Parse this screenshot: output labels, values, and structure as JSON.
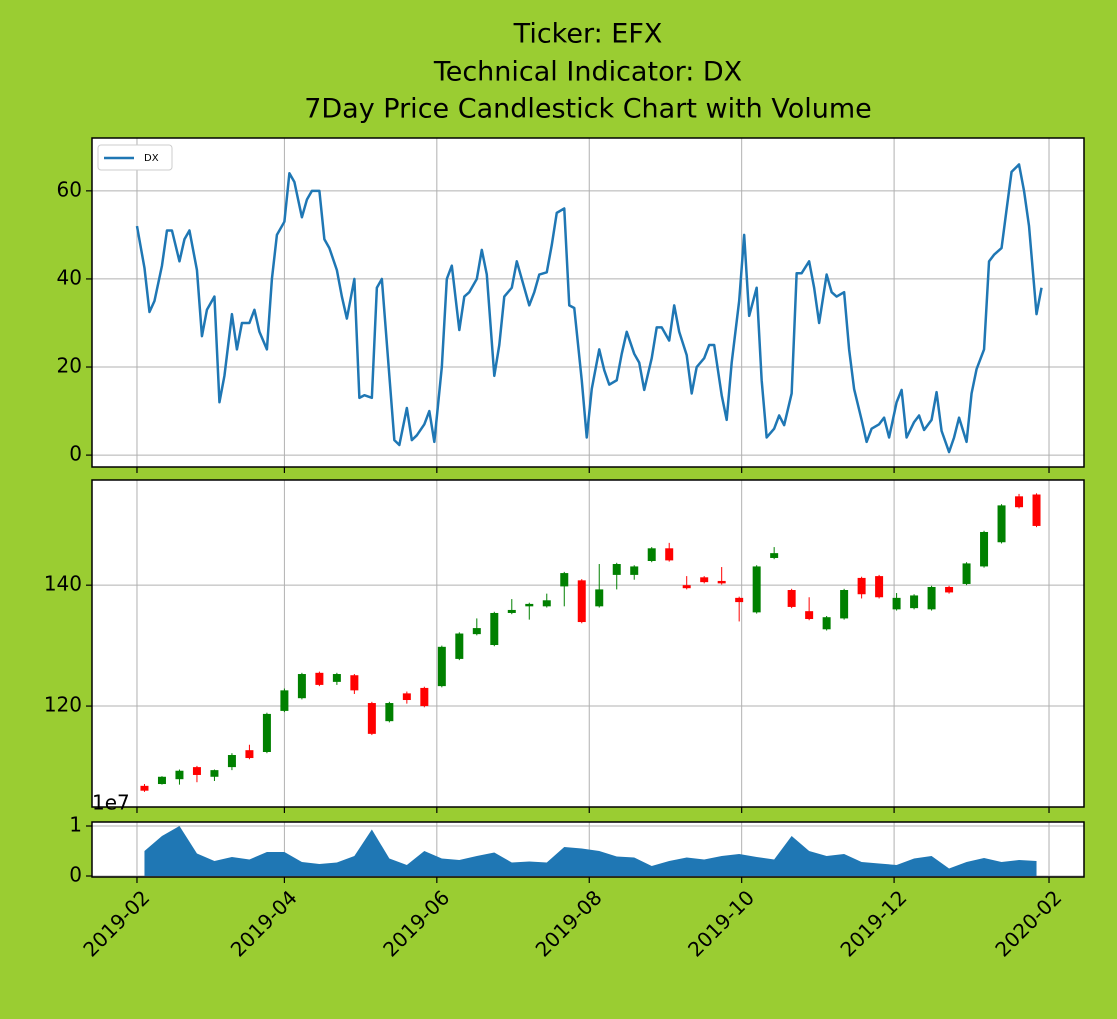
{
  "chart_data": [
    {
      "type": "line",
      "title": [
        "Ticker: EFX",
        "Technical Indicator: DX",
        "7Day Price Candlestick Chart with Volume"
      ],
      "legend": "upper left",
      "grid": true,
      "ylim": [
        -2.7,
        72
      ],
      "yticks": [
        0,
        20,
        40,
        60
      ],
      "x": [
        "2019-02-01",
        "2019-02-04",
        "2019-02-06",
        "2019-02-08",
        "2019-02-11",
        "2019-02-13",
        "2019-02-15",
        "2019-02-18",
        "2019-02-20",
        "2019-02-22",
        "2019-02-25",
        "2019-02-27",
        "2019-03-01",
        "2019-03-04",
        "2019-03-06",
        "2019-03-08",
        "2019-03-11",
        "2019-03-13",
        "2019-03-15",
        "2019-03-18",
        "2019-03-20",
        "2019-03-22",
        "2019-03-25",
        "2019-03-27",
        "2019-03-29",
        "2019-04-01",
        "2019-04-03",
        "2019-04-05",
        "2019-04-08",
        "2019-04-10",
        "2019-04-12",
        "2019-04-15",
        "2019-04-17",
        "2019-04-19",
        "2019-04-22",
        "2019-04-24",
        "2019-04-26",
        "2019-04-29",
        "2019-05-01",
        "2019-05-03",
        "2019-05-06",
        "2019-05-08",
        "2019-05-10",
        "2019-05-13",
        "2019-05-15",
        "2019-05-17",
        "2019-05-20",
        "2019-05-22",
        "2019-05-24",
        "2019-05-27",
        "2019-05-29",
        "2019-05-31",
        "2019-06-03",
        "2019-06-05",
        "2019-06-07",
        "2019-06-10",
        "2019-06-12",
        "2019-06-14",
        "2019-06-17",
        "2019-06-19",
        "2019-06-21",
        "2019-06-24",
        "2019-06-26",
        "2019-06-28",
        "2019-07-01",
        "2019-07-03",
        "2019-07-05",
        "2019-07-08",
        "2019-07-10",
        "2019-07-12",
        "2019-07-15",
        "2019-07-17",
        "2019-07-19",
        "2019-07-22",
        "2019-07-24",
        "2019-07-26",
        "2019-07-29",
        "2019-07-31",
        "2019-08-02",
        "2019-08-05",
        "2019-08-07",
        "2019-08-09",
        "2019-08-12",
        "2019-08-14",
        "2019-08-16",
        "2019-08-19",
        "2019-08-21",
        "2019-08-23",
        "2019-08-26",
        "2019-08-28",
        "2019-08-30",
        "2019-09-02",
        "2019-09-04",
        "2019-09-06",
        "2019-09-09",
        "2019-09-11",
        "2019-09-13",
        "2019-09-16",
        "2019-09-18",
        "2019-09-20",
        "2019-09-23",
        "2019-09-25",
        "2019-09-27",
        "2019-09-30",
        "2019-10-02",
        "2019-10-04",
        "2019-10-07",
        "2019-10-09",
        "2019-10-11",
        "2019-10-14",
        "2019-10-16",
        "2019-10-18",
        "2019-10-21",
        "2019-10-23",
        "2019-10-25",
        "2019-10-28",
        "2019-10-30",
        "2019-11-01",
        "2019-11-04",
        "2019-11-06",
        "2019-11-08",
        "2019-11-11",
        "2019-11-13",
        "2019-11-15",
        "2019-11-18",
        "2019-11-20",
        "2019-11-22",
        "2019-11-25",
        "2019-11-27",
        "2019-11-29",
        "2019-12-02",
        "2019-12-04",
        "2019-12-06",
        "2019-12-09",
        "2019-12-11",
        "2019-12-13",
        "2019-12-16",
        "2019-12-18",
        "2019-12-20",
        "2019-12-23",
        "2019-12-25",
        "2019-12-27",
        "2019-12-30",
        "2020-01-01",
        "2020-01-03",
        "2020-01-06",
        "2020-01-08",
        "2020-01-10",
        "2020-01-13",
        "2020-01-15",
        "2020-01-17",
        "2020-01-20",
        "2020-01-22",
        "2020-01-24",
        "2020-01-27",
        "2020-01-29"
      ],
      "series": [
        {
          "name": "DX",
          "color": "#1f77b4",
          "values": [
            52,
            42.5,
            32.5,
            35,
            43,
            51,
            51,
            44,
            49,
            51,
            42,
            27,
            33,
            36,
            12,
            18,
            32,
            24,
            30,
            30,
            33,
            28,
            24,
            40,
            50,
            53,
            64,
            62,
            54,
            58,
            60,
            60,
            49,
            47,
            42,
            36,
            31,
            40,
            13,
            13.6,
            13,
            38,
            40,
            18,
            3.4,
            2.3,
            10.7,
            3.4,
            4.5,
            7,
            10,
            3,
            20,
            40,
            43,
            28.4,
            36,
            37,
            40,
            46.6,
            41,
            18,
            25,
            36,
            38,
            44,
            40,
            34,
            37,
            41,
            41.5,
            47.7,
            55,
            56,
            34,
            33.4,
            17,
            4,
            15,
            24,
            19.3,
            16,
            17,
            23,
            28,
            23,
            21,
            14.8,
            22,
            29,
            29,
            26,
            34,
            28,
            22.7,
            14,
            20,
            22,
            25,
            25,
            13.6,
            8,
            21,
            35,
            50,
            31.6,
            38,
            17,
            4,
            6,
            9,
            6.8,
            14,
            41.3,
            41.3,
            44,
            38,
            30,
            41,
            37,
            36,
            37,
            24,
            15,
            8,
            3,
            6,
            7,
            8.5,
            4,
            12,
            14.8,
            4,
            7.5,
            9,
            5.7,
            8,
            14.3,
            5.5,
            0.7,
            4,
            8.5,
            3,
            14,
            19.5,
            24,
            44,
            45.5,
            47,
            55.7,
            64.3,
            66,
            60,
            52,
            32,
            38
          ]
        }
      ]
    },
    {
      "type": "candlestick",
      "grid": true,
      "ylim": [
        103.3,
        157.4
      ],
      "yticks": [
        120,
        140
      ],
      "up_color": "#008000",
      "down_color": "#ff0000",
      "x": [
        "2019-02-04",
        "2019-02-11",
        "2019-02-18",
        "2019-02-25",
        "2019-03-04",
        "2019-03-11",
        "2019-03-18",
        "2019-03-25",
        "2019-04-01",
        "2019-04-08",
        "2019-04-15",
        "2019-04-22",
        "2019-04-29",
        "2019-05-06",
        "2019-05-13",
        "2019-05-20",
        "2019-05-27",
        "2019-06-03",
        "2019-06-10",
        "2019-06-17",
        "2019-06-24",
        "2019-07-01",
        "2019-07-08",
        "2019-07-15",
        "2019-07-22",
        "2019-07-29",
        "2019-08-05",
        "2019-08-12",
        "2019-08-19",
        "2019-08-26",
        "2019-09-02",
        "2019-09-09",
        "2019-09-16",
        "2019-09-23",
        "2019-09-30",
        "2019-10-07",
        "2019-10-14",
        "2019-10-21",
        "2019-10-28",
        "2019-11-04",
        "2019-11-11",
        "2019-11-18",
        "2019-11-25",
        "2019-12-02",
        "2019-12-09",
        "2019-12-16",
        "2019-12-23",
        "2019-12-30",
        "2020-01-06",
        "2020-01-13",
        "2020-01-20",
        "2020-01-27"
      ],
      "open": [
        106.8,
        107.1,
        107.9,
        109.9,
        108.3,
        109.9,
        112.7,
        112.4,
        119.2,
        121.3,
        125.5,
        124.0,
        125.1,
        120.5,
        117.5,
        122.1,
        123.0,
        123.3,
        127.8,
        131.9,
        130.1,
        135.4,
        136.5,
        136.5,
        139.8,
        140.8,
        136.5,
        141.7,
        141.7,
        144.0,
        146.1,
        140.0,
        141.3,
        140.7,
        137.9,
        135.5,
        144.5,
        139.2,
        135.7,
        132.7,
        134.5,
        141.2,
        141.5,
        136.0,
        136.2,
        136.0,
        139.7,
        140.2,
        143.1,
        147.1,
        154.7,
        155.0
      ],
      "high": [
        107.1,
        108.4,
        109.5,
        110.1,
        109.5,
        112.2,
        113.6,
        118.9,
        122.9,
        125.5,
        125.7,
        125.5,
        125.3,
        120.7,
        120.7,
        122.4,
        123.2,
        130.0,
        132.2,
        134.5,
        135.6,
        137.7,
        137.1,
        138.6,
        142.2,
        141.0,
        143.5,
        143.7,
        143.3,
        146.3,
        147.0,
        141.5,
        141.5,
        143.0,
        138.1,
        143.3,
        146.3,
        139.4,
        138.0,
        134.9,
        139.4,
        141.4,
        141.7,
        138.7,
        138.5,
        139.9,
        139.9,
        143.8,
        149.0,
        153.4,
        155.1,
        155.2
      ],
      "low": [
        105.8,
        107.0,
        107.0,
        107.4,
        107.6,
        109.4,
        111.2,
        112.2,
        119.0,
        121.1,
        123.3,
        123.5,
        122.0,
        115.2,
        117.3,
        120.4,
        119.8,
        123.1,
        127.6,
        131.7,
        129.9,
        135.2,
        134.3,
        136.3,
        136.5,
        133.7,
        136.3,
        139.3,
        140.9,
        143.8,
        143.9,
        139.3,
        140.3,
        140.1,
        134.0,
        135.3,
        144.3,
        136.2,
        134.2,
        132.5,
        134.3,
        137.8,
        137.8,
        135.8,
        136.0,
        135.8,
        138.6,
        140.0,
        142.9,
        146.9,
        152.7,
        149.6
      ],
      "close": [
        106.0,
        108.3,
        109.3,
        108.6,
        109.4,
        111.9,
        111.4,
        118.7,
        122.6,
        125.3,
        123.5,
        125.3,
        122.6,
        115.4,
        120.5,
        121.0,
        120.0,
        129.8,
        132.0,
        132.9,
        135.4,
        135.9,
        136.9,
        137.5,
        142.0,
        133.9,
        139.3,
        143.5,
        143.1,
        146.1,
        144.1,
        139.5,
        140.5,
        140.3,
        137.2,
        143.1,
        145.3,
        136.4,
        134.4,
        134.7,
        139.2,
        138.5,
        138.0,
        137.9,
        138.3,
        139.7,
        138.8,
        143.6,
        148.8,
        153.2,
        152.9,
        149.8
      ]
    },
    {
      "type": "area",
      "grid": true,
      "color": "#1f77b4",
      "offset_text": "1e7",
      "ylim": [
        -0.02,
        1.08
      ],
      "yticks": [
        0,
        1
      ],
      "xlim": [
        "2019-01-14",
        "2020-02-15"
      ],
      "xticks": [
        "2019-02",
        "2019-04",
        "2019-06",
        "2019-08",
        "2019-10",
        "2019-12",
        "2020-02"
      ],
      "x": [
        "2019-02-04",
        "2019-02-11",
        "2019-02-18",
        "2019-02-25",
        "2019-03-04",
        "2019-03-11",
        "2019-03-18",
        "2019-03-25",
        "2019-04-01",
        "2019-04-08",
        "2019-04-15",
        "2019-04-22",
        "2019-04-29",
        "2019-05-06",
        "2019-05-13",
        "2019-05-20",
        "2019-05-27",
        "2019-06-03",
        "2019-06-10",
        "2019-06-17",
        "2019-06-24",
        "2019-07-01",
        "2019-07-08",
        "2019-07-15",
        "2019-07-22",
        "2019-07-29",
        "2019-08-05",
        "2019-08-12",
        "2019-08-19",
        "2019-08-26",
        "2019-09-02",
        "2019-09-09",
        "2019-09-16",
        "2019-09-23",
        "2019-09-30",
        "2019-10-07",
        "2019-10-14",
        "2019-10-21",
        "2019-10-28",
        "2019-11-04",
        "2019-11-11",
        "2019-11-18",
        "2019-11-25",
        "2019-12-02",
        "2019-12-09",
        "2019-12-16",
        "2019-12-23",
        "2019-12-30",
        "2020-01-06",
        "2020-01-13",
        "2020-01-20",
        "2020-01-27"
      ],
      "values": [
        0.5,
        0.8,
        1.0,
        0.45,
        0.3,
        0.38,
        0.33,
        0.48,
        0.48,
        0.28,
        0.24,
        0.27,
        0.4,
        0.93,
        0.35,
        0.22,
        0.5,
        0.35,
        0.32,
        0.4,
        0.47,
        0.27,
        0.29,
        0.27,
        0.58,
        0.55,
        0.5,
        0.39,
        0.37,
        0.2,
        0.3,
        0.37,
        0.33,
        0.4,
        0.44,
        0.38,
        0.33,
        0.8,
        0.5,
        0.4,
        0.44,
        0.28,
        0.25,
        0.22,
        0.35,
        0.4,
        0.15,
        0.28,
        0.36,
        0.28,
        0.32,
        0.3
      ]
    }
  ]
}
